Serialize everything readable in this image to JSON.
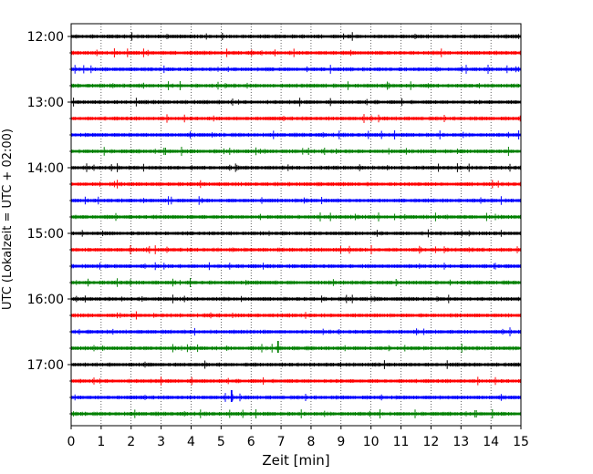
{
  "chart_data": {
    "type": "line",
    "title": "",
    "xlabel": "Zeit  [min]",
    "ylabel": "UTC (Lokalzeit = UTC + 02:00)",
    "xlim": [
      0,
      15
    ],
    "x_ticks": [
      "0",
      "1",
      "2",
      "3",
      "4",
      "5",
      "6",
      "7",
      "8",
      "9",
      "10",
      "11",
      "12",
      "13",
      "14",
      "15"
    ],
    "y_tick_labels": [
      "12:00",
      "13:00",
      "14:00",
      "15:00",
      "16:00",
      "17:00"
    ],
    "grid": "vertical-dotted",
    "legend": "none",
    "trace_interval_minutes": 15,
    "trace_colors": [
      "#000000",
      "#ff0000",
      "#0000ff",
      "#008000"
    ],
    "traces": [
      {
        "start": "12:00",
        "color": "#000000"
      },
      {
        "start": "12:15",
        "color": "#ff0000"
      },
      {
        "start": "12:30",
        "color": "#0000ff"
      },
      {
        "start": "12:45",
        "color": "#008000"
      },
      {
        "start": "13:00",
        "color": "#000000"
      },
      {
        "start": "13:15",
        "color": "#ff0000"
      },
      {
        "start": "13:30",
        "color": "#0000ff"
      },
      {
        "start": "13:45",
        "color": "#008000"
      },
      {
        "start": "14:00",
        "color": "#000000"
      },
      {
        "start": "14:15",
        "color": "#ff0000"
      },
      {
        "start": "14:30",
        "color": "#0000ff"
      },
      {
        "start": "14:45",
        "color": "#008000"
      },
      {
        "start": "15:00",
        "color": "#000000"
      },
      {
        "start": "15:15",
        "color": "#ff0000"
      },
      {
        "start": "15:30",
        "color": "#0000ff"
      },
      {
        "start": "15:45",
        "color": "#008000"
      },
      {
        "start": "16:00",
        "color": "#000000"
      },
      {
        "start": "16:15",
        "color": "#ff0000"
      },
      {
        "start": "16:30",
        "color": "#0000ff"
      },
      {
        "start": "16:45",
        "color": "#008000"
      },
      {
        "start": "17:00",
        "color": "#000000"
      },
      {
        "start": "17:15",
        "color": "#ff0000"
      },
      {
        "start": "17:30",
        "color": "#0000ff"
      },
      {
        "start": "17:45",
        "color": "#008000"
      }
    ],
    "notable_events": [
      {
        "trace_start": "16:45",
        "minute": 6.9
      },
      {
        "trace_start": "17:30",
        "minute": 5.35
      }
    ]
  }
}
